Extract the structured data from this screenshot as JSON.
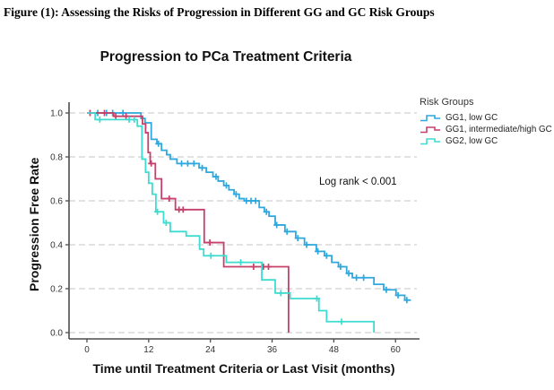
{
  "caption": "Figure (1): Assessing the Risks of Progression in Different GG and GC Risk Groups",
  "chart_data": {
    "type": "line",
    "variant": "kaplan_meier_step",
    "title": "Progression to PCa Treatment Criteria",
    "xlabel": "Time until Treatment Criteria or Last Visit (months)",
    "ylabel": "Progression Free Rate",
    "annotation": "Log rank < 0.001",
    "legend_title": "Risk Groups",
    "legend_position": "right",
    "grid": "horizontal_dashed",
    "xlim": [
      0,
      64.5
    ],
    "ylim": [
      0,
      1.05
    ],
    "xticks": [
      {
        "v": 0,
        "label": "0"
      },
      {
        "v": 12,
        "label": "12"
      },
      {
        "v": 24,
        "label": "24"
      },
      {
        "v": 36,
        "label": "36"
      },
      {
        "v": 48,
        "label": "48"
      },
      {
        "v": 60,
        "label": "60"
      }
    ],
    "yticks": [
      {
        "v": 1.0,
        "label": "1.0"
      },
      {
        "v": 0.8,
        "label": "0.8"
      },
      {
        "v": 0.6,
        "label": "0.6"
      },
      {
        "v": 0.4,
        "label": "0.4"
      },
      {
        "v": 0.2,
        "label": "0.2"
      },
      {
        "v": 0.0,
        "label": "0.0"
      }
    ],
    "colors": {
      "grid": "#d9d9d9",
      "axis": "#4d4d4d",
      "tick_text": "#333333"
    },
    "series": [
      {
        "name": "GG1, low GC",
        "color": "#2fa8de",
        "steps": [
          [
            0,
            1.0
          ],
          [
            10.5,
            0.975
          ],
          [
            11.3,
            0.955
          ],
          [
            12.5,
            0.88
          ],
          [
            13.6,
            0.86
          ],
          [
            14.5,
            0.83
          ],
          [
            15.5,
            0.81
          ],
          [
            16.2,
            0.79
          ],
          [
            17.5,
            0.77
          ],
          [
            21.8,
            0.75
          ],
          [
            23.2,
            0.73
          ],
          [
            24.5,
            0.71
          ],
          [
            25.5,
            0.69
          ],
          [
            26.6,
            0.67
          ],
          [
            27.6,
            0.65
          ],
          [
            28.6,
            0.63
          ],
          [
            29.6,
            0.61
          ],
          [
            30.6,
            0.6
          ],
          [
            33.5,
            0.57
          ],
          [
            34.5,
            0.55
          ],
          [
            35.4,
            0.53
          ],
          [
            36.6,
            0.49
          ],
          [
            38.5,
            0.46
          ],
          [
            40.6,
            0.43
          ],
          [
            42.3,
            0.4
          ],
          [
            44.6,
            0.37
          ],
          [
            46.2,
            0.35
          ],
          [
            47.6,
            0.32
          ],
          [
            48.9,
            0.3
          ],
          [
            50.5,
            0.27
          ],
          [
            51.6,
            0.25
          ],
          [
            55.8,
            0.22
          ],
          [
            57.7,
            0.195
          ],
          [
            60.1,
            0.17
          ],
          [
            61.8,
            0.148
          ],
          [
            63,
            0.148
          ]
        ],
        "censors": [
          [
            2.1,
            1.0
          ],
          [
            3.8,
            1.0
          ],
          [
            5,
            1.0
          ],
          [
            7,
            1.0
          ],
          [
            13.9,
            0.86
          ],
          [
            18.4,
            0.77
          ],
          [
            19.6,
            0.77
          ],
          [
            20.8,
            0.77
          ],
          [
            22.4,
            0.75
          ],
          [
            25.1,
            0.71
          ],
          [
            27.1,
            0.67
          ],
          [
            29,
            0.63
          ],
          [
            31,
            0.6
          ],
          [
            31.9,
            0.6
          ],
          [
            32.8,
            0.6
          ],
          [
            34.9,
            0.55
          ],
          [
            36.9,
            0.49
          ],
          [
            38.9,
            0.46
          ],
          [
            41,
            0.43
          ],
          [
            42.7,
            0.4
          ],
          [
            44.9,
            0.37
          ],
          [
            46.6,
            0.35
          ],
          [
            49.3,
            0.3
          ],
          [
            50.9,
            0.27
          ],
          [
            52.4,
            0.25
          ],
          [
            53.8,
            0.25
          ],
          [
            58.2,
            0.195
          ],
          [
            60.5,
            0.17
          ],
          [
            62.2,
            0.148
          ]
        ]
      },
      {
        "name": "GG1, intermediate/high GC",
        "color": "#c5406a",
        "steps": [
          [
            0,
            1.0
          ],
          [
            5.2,
            0.985
          ],
          [
            10.8,
            0.95
          ],
          [
            11.4,
            0.91
          ],
          [
            11.9,
            0.82
          ],
          [
            12.3,
            0.77
          ],
          [
            13.3,
            0.7
          ],
          [
            14.5,
            0.61
          ],
          [
            17.2,
            0.56
          ],
          [
            22.8,
            0.41
          ],
          [
            26.6,
            0.3
          ],
          [
            39.2,
            0.0
          ]
        ],
        "censors": [
          [
            0.6,
            1.0
          ],
          [
            3.4,
            1.0
          ],
          [
            5.6,
            0.985
          ],
          [
            7.6,
            0.985
          ],
          [
            12.5,
            0.77
          ],
          [
            16,
            0.61
          ],
          [
            17.9,
            0.56
          ],
          [
            18.7,
            0.56
          ],
          [
            23.9,
            0.41
          ],
          [
            32.4,
            0.3
          ],
          [
            34.3,
            0.3
          ],
          [
            35.3,
            0.3
          ]
        ]
      },
      {
        "name": "GG2, low GC",
        "color": "#3cdcd0",
        "steps": [
          [
            0,
            1.0
          ],
          [
            1.6,
            0.97
          ],
          [
            9.8,
            0.94
          ],
          [
            10.7,
            0.79
          ],
          [
            11.4,
            0.73
          ],
          [
            12,
            0.68
          ],
          [
            12.7,
            0.63
          ],
          [
            13.4,
            0.55
          ],
          [
            14.9,
            0.5
          ],
          [
            16.2,
            0.46
          ],
          [
            19.3,
            0.44
          ],
          [
            21.9,
            0.38
          ],
          [
            22.7,
            0.35
          ],
          [
            27.1,
            0.32
          ],
          [
            34,
            0.24
          ],
          [
            36.6,
            0.18
          ],
          [
            39.5,
            0.155
          ],
          [
            45.1,
            0.1
          ],
          [
            46.6,
            0.05
          ],
          [
            55.8,
            0.0
          ]
        ],
        "censors": [
          [
            2.5,
            0.97
          ],
          [
            8.2,
            0.97
          ],
          [
            9.2,
            0.97
          ],
          [
            13.7,
            0.55
          ],
          [
            15.4,
            0.5
          ],
          [
            24.1,
            0.35
          ],
          [
            29.9,
            0.32
          ],
          [
            37.7,
            0.18
          ],
          [
            44.7,
            0.155
          ],
          [
            49.5,
            0.05
          ]
        ]
      }
    ]
  }
}
